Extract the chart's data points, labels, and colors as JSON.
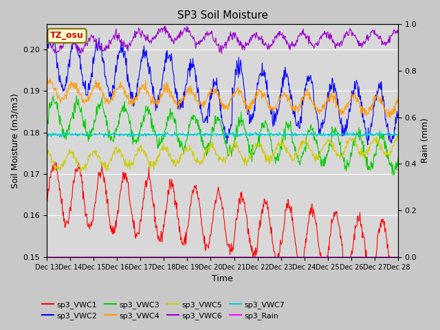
{
  "title": "SP3 Soil Moisture",
  "xlabel": "Time",
  "ylabel_left": "Soil Moisture (m3/m3)",
  "ylabel_right": "Rain (mm)",
  "xlim": [
    0,
    720
  ],
  "ylim_left": [
    0.15,
    0.206
  ],
  "ylim_right": [
    0.0,
    1.0
  ],
  "xtick_labels": [
    "Dec 13",
    "Dec 14",
    "Dec 15",
    "Dec 16",
    "Dec 17",
    "Dec 18",
    "Dec 19",
    "Dec 20",
    "Dec 21",
    "Dec 22",
    "Dec 23",
    "Dec 24",
    "Dec 25",
    "Dec 26",
    "Dec 27",
    "Dec 28"
  ],
  "colors": {
    "sp3_VWC1": "#ff0000",
    "sp3_VWC2": "#0000ff",
    "sp3_VWC3": "#00cc00",
    "sp3_VWC4": "#ff9900",
    "sp3_VWC5": "#cccc00",
    "sp3_VWC6": "#9900cc",
    "sp3_VWC7": "#00cccc",
    "sp3_Rain": "#ff00ff"
  },
  "annotation_text": "TZ_osu",
  "annotation_color": "#cc0000",
  "annotation_bg": "#ffffcc",
  "background_color": "#d8d8d8",
  "n_points": 768,
  "period": 48
}
